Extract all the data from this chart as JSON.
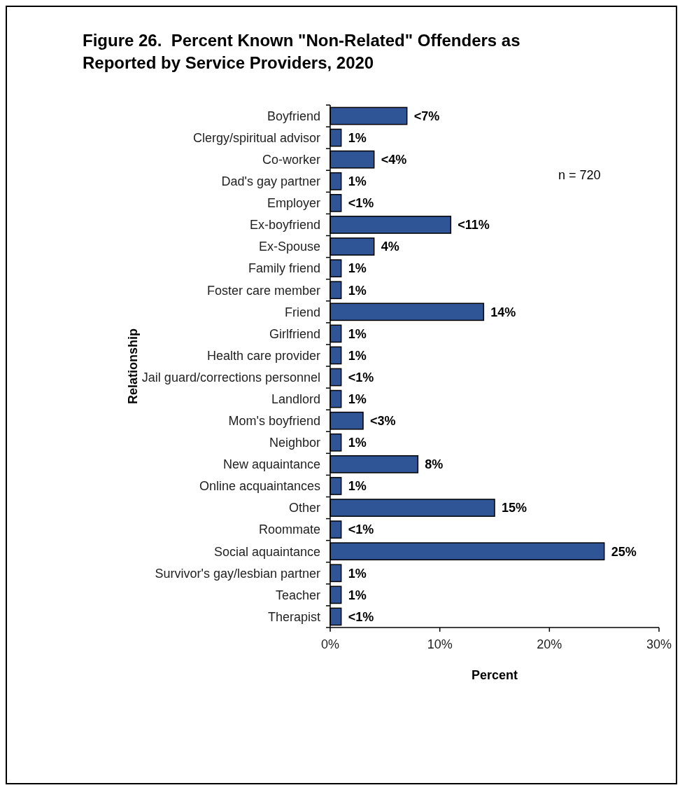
{
  "chart_data": {
    "type": "bar",
    "orientation": "horizontal",
    "title": "Figure 26.  Percent Known \"Non-Related\" Offenders as Reported by Service Providers, 2020",
    "xlabel": "Percent",
    "ylabel": "Relationship",
    "annotations": [
      "n = 720"
    ],
    "categories": [
      "Boyfriend",
      "Clergy/spiritual advisor",
      "Co-worker",
      "Dad's gay partner",
      "Employer",
      "Ex-boyfriend",
      "Ex-Spouse",
      "Family friend",
      "Foster care member",
      "Friend",
      "Girlfriend",
      "Health care provider",
      "Jail guard/corrections personnel",
      "Landlord",
      "Mom's boyfriend",
      "Neighbor",
      "New aquaintance",
      "Online acquaintances",
      "Other",
      "Roommate",
      "Social aquaintance",
      "Survivor's gay/lesbian partner",
      "Teacher",
      "Therapist"
    ],
    "values": [
      7,
      1,
      4,
      1,
      1,
      11,
      4,
      1,
      1,
      14,
      1,
      1,
      1,
      1,
      3,
      1,
      8,
      1,
      15,
      1,
      25,
      1,
      1,
      1
    ],
    "value_labels": [
      "<7%",
      "1%",
      "<4%",
      "1%",
      "<1%",
      "<11%",
      "4%",
      "1%",
      "1%",
      "14%",
      "1%",
      "1%",
      "<1%",
      "1%",
      "<3%",
      "1%",
      "8%",
      "1%",
      "15%",
      "<1%",
      "25%",
      "1%",
      "1%",
      "<1%"
    ],
    "color": "#2f5597",
    "xlim": [
      0,
      30
    ],
    "xticks": [
      {
        "value": 0,
        "label": "0%"
      },
      {
        "value": 10,
        "label": "10%"
      },
      {
        "value": 20,
        "label": "20%"
      },
      {
        "value": 30,
        "label": "30%"
      }
    ],
    "grid": false
  }
}
